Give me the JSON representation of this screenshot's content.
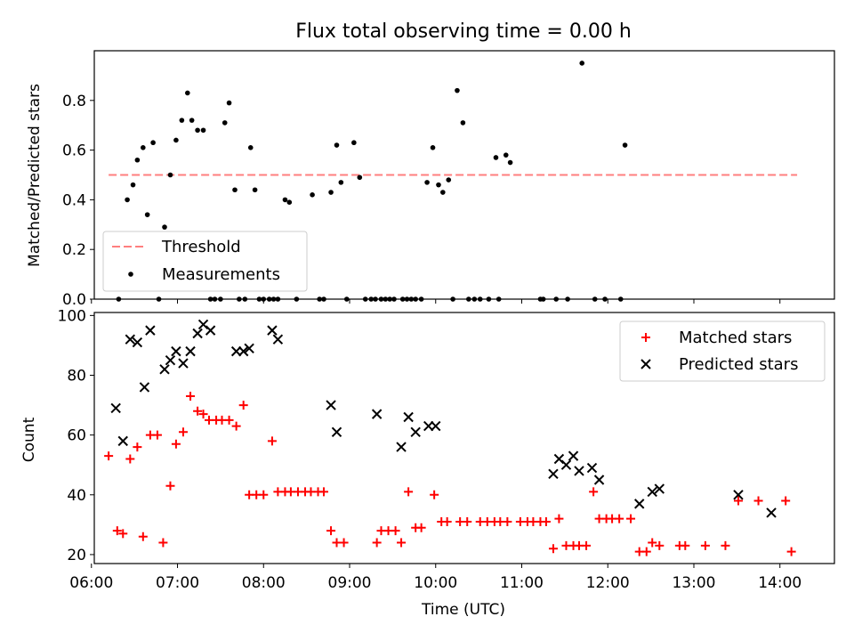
{
  "chart_data": [
    {
      "type": "scatter",
      "title": "Flux total observing time = 0.00 h",
      "ylabel": "Matched/Predicted stars",
      "xlabel": "",
      "xlim": [
        "06:02",
        "14:38"
      ],
      "ylim": [
        0,
        1.0
      ],
      "yticks": [
        "0.0",
        "0.2",
        "0.4",
        "0.6",
        "0.8"
      ],
      "grid": false,
      "legend_position": "lower-left",
      "threshold": {
        "name": "Threshold",
        "color": "#ff7f7f",
        "style": "dashed",
        "y": 0.5,
        "x_range": [
          "06:12",
          "14:12"
        ]
      },
      "series": [
        {
          "name": "Measurements",
          "color": "#000000",
          "marker": "dot",
          "points": [
            [
              "06:19",
              0.0
            ],
            [
              "06:25",
              0.4
            ],
            [
              "06:29",
              0.46
            ],
            [
              "06:32",
              0.56
            ],
            [
              "06:36",
              0.61
            ],
            [
              "06:39",
              0.34
            ],
            [
              "06:43",
              0.63
            ],
            [
              "06:47",
              0.0
            ],
            [
              "06:51",
              0.29
            ],
            [
              "06:55",
              0.5
            ],
            [
              "06:59",
              0.64
            ],
            [
              "07:03",
              0.72
            ],
            [
              "07:07",
              0.83
            ],
            [
              "07:10",
              0.72
            ],
            [
              "07:14",
              0.68
            ],
            [
              "07:18",
              0.68
            ],
            [
              "07:23",
              0.0
            ],
            [
              "07:26",
              0.0
            ],
            [
              "07:30",
              0.0
            ],
            [
              "07:33",
              0.71
            ],
            [
              "07:36",
              0.79
            ],
            [
              "07:40",
              0.44
            ],
            [
              "07:43",
              0.0
            ],
            [
              "07:47",
              0.0
            ],
            [
              "07:51",
              0.61
            ],
            [
              "07:54",
              0.44
            ],
            [
              "07:57",
              0.0
            ],
            [
              "08:00",
              0.0
            ],
            [
              "08:04",
              0.0
            ],
            [
              "08:07",
              0.0
            ],
            [
              "08:10",
              0.0
            ],
            [
              "08:15",
              0.4
            ],
            [
              "08:18",
              0.39
            ],
            [
              "08:23",
              0.0
            ],
            [
              "08:34",
              0.42
            ],
            [
              "08:39",
              0.0
            ],
            [
              "08:42",
              0.0
            ],
            [
              "08:47",
              0.43
            ],
            [
              "08:51",
              0.62
            ],
            [
              "08:54",
              0.47
            ],
            [
              "08:58",
              0.0
            ],
            [
              "09:03",
              0.63
            ],
            [
              "09:07",
              0.49
            ],
            [
              "09:11",
              0.0
            ],
            [
              "09:15",
              0.0
            ],
            [
              "09:18",
              0.0
            ],
            [
              "09:22",
              0.0
            ],
            [
              "09:25",
              0.0
            ],
            [
              "09:28",
              0.0
            ],
            [
              "09:31",
              0.0
            ],
            [
              "09:37",
              0.0
            ],
            [
              "09:40",
              0.0
            ],
            [
              "09:43",
              0.0
            ],
            [
              "09:46",
              0.0
            ],
            [
              "09:50",
              0.0
            ],
            [
              "09:54",
              0.47
            ],
            [
              "09:58",
              0.61
            ],
            [
              "10:02",
              0.46
            ],
            [
              "10:05",
              0.43
            ],
            [
              "10:09",
              0.48
            ],
            [
              "10:12",
              0.0
            ],
            [
              "10:15",
              0.84
            ],
            [
              "10:19",
              0.71
            ],
            [
              "10:23",
              0.0
            ],
            [
              "10:27",
              0.0
            ],
            [
              "10:31",
              0.0
            ],
            [
              "10:37",
              0.0
            ],
            [
              "10:42",
              0.57
            ],
            [
              "10:44",
              0.0
            ],
            [
              "10:49",
              0.58
            ],
            [
              "10:52",
              0.55
            ],
            [
              "11:13",
              0.0
            ],
            [
              "11:15",
              0.0
            ],
            [
              "11:24",
              0.0
            ],
            [
              "11:32",
              0.0
            ],
            [
              "11:42",
              0.95
            ],
            [
              "11:51",
              0.0
            ],
            [
              "11:58",
              0.0
            ],
            [
              "12:09",
              0.0
            ],
            [
              "12:12",
              0.62
            ]
          ]
        }
      ]
    },
    {
      "type": "scatter",
      "title": "",
      "ylabel": "Count",
      "xlabel": "Time (UTC)",
      "xlim": [
        "06:02",
        "14:38"
      ],
      "ylim": [
        17,
        101
      ],
      "yticks": [
        "20",
        "40",
        "60",
        "80",
        "100"
      ],
      "xticks": [
        "06:00",
        "07:00",
        "08:00",
        "09:00",
        "10:00",
        "11:00",
        "12:00",
        "13:00",
        "14:00"
      ],
      "grid": false,
      "legend_position": "upper-right",
      "series": [
        {
          "name": "Matched stars",
          "color": "#ff0000",
          "marker": "plus",
          "points": [
            [
              "06:12",
              53
            ],
            [
              "06:18",
              28
            ],
            [
              "06:22",
              27
            ],
            [
              "06:27",
              52
            ],
            [
              "06:32",
              56
            ],
            [
              "06:36",
              26
            ],
            [
              "06:41",
              60
            ],
            [
              "06:46",
              60
            ],
            [
              "06:50",
              24
            ],
            [
              "06:55",
              43
            ],
            [
              "06:59",
              57
            ],
            [
              "07:04",
              61
            ],
            [
              "07:09",
              73
            ],
            [
              "07:14",
              68
            ],
            [
              "07:18",
              67
            ],
            [
              "07:22",
              65
            ],
            [
              "07:27",
              65
            ],
            [
              "07:31",
              65
            ],
            [
              "07:36",
              65
            ],
            [
              "07:41",
              63
            ],
            [
              "07:46",
              70
            ],
            [
              "07:50",
              40
            ],
            [
              "07:55",
              40
            ],
            [
              "08:00",
              40
            ],
            [
              "08:06",
              58
            ],
            [
              "08:10",
              41
            ],
            [
              "08:15",
              41
            ],
            [
              "08:19",
              41
            ],
            [
              "08:24",
              41
            ],
            [
              "08:29",
              41
            ],
            [
              "08:33",
              41
            ],
            [
              "08:38",
              41
            ],
            [
              "08:42",
              41
            ],
            [
              "08:47",
              28
            ],
            [
              "08:51",
              24
            ],
            [
              "08:56",
              24
            ],
            [
              "09:19",
              24
            ],
            [
              "09:22",
              28
            ],
            [
              "09:27",
              28
            ],
            [
              "09:32",
              28
            ],
            [
              "09:36",
              24
            ],
            [
              "09:41",
              41
            ],
            [
              "09:46",
              29
            ],
            [
              "09:50",
              29
            ],
            [
              "09:59",
              40
            ],
            [
              "10:04",
              31
            ],
            [
              "10:08",
              31
            ],
            [
              "10:17",
              31
            ],
            [
              "10:22",
              31
            ],
            [
              "10:31",
              31
            ],
            [
              "10:36",
              31
            ],
            [
              "10:41",
              31
            ],
            [
              "10:45",
              31
            ],
            [
              "10:50",
              31
            ],
            [
              "10:59",
              31
            ],
            [
              "11:04",
              31
            ],
            [
              "11:08",
              31
            ],
            [
              "11:13",
              31
            ],
            [
              "11:17",
              31
            ],
            [
              "11:22",
              22
            ],
            [
              "11:26",
              32
            ],
            [
              "11:31",
              23
            ],
            [
              "11:36",
              23
            ],
            [
              "11:40",
              23
            ],
            [
              "11:45",
              23
            ],
            [
              "11:50",
              41
            ],
            [
              "11:54",
              32
            ],
            [
              "11:59",
              32
            ],
            [
              "12:03",
              32
            ],
            [
              "12:08",
              32
            ],
            [
              "12:16",
              32
            ],
            [
              "12:22",
              21
            ],
            [
              "12:27",
              21
            ],
            [
              "12:31",
              24
            ],
            [
              "12:36",
              23
            ],
            [
              "12:50",
              23
            ],
            [
              "12:54",
              23
            ],
            [
              "13:08",
              23
            ],
            [
              "13:22",
              23
            ],
            [
              "13:31",
              38
            ],
            [
              "13:45",
              38
            ],
            [
              "14:04",
              38
            ],
            [
              "14:08",
              21
            ]
          ]
        },
        {
          "name": "Predicted stars",
          "color": "#000000",
          "marker": "x",
          "points": [
            [
              "06:17",
              69
            ],
            [
              "06:22",
              58
            ],
            [
              "06:27",
              92
            ],
            [
              "06:32",
              91
            ],
            [
              "06:37",
              76
            ],
            [
              "06:41",
              95
            ],
            [
              "06:51",
              82
            ],
            [
              "06:55",
              85
            ],
            [
              "06:59",
              88
            ],
            [
              "07:04",
              84
            ],
            [
              "07:09",
              88
            ],
            [
              "07:14",
              94
            ],
            [
              "07:18",
              97
            ],
            [
              "07:23",
              95
            ],
            [
              "07:41",
              88
            ],
            [
              "07:46",
              88
            ],
            [
              "07:50",
              89
            ],
            [
              "08:06",
              95
            ],
            [
              "08:10",
              92
            ],
            [
              "08:47",
              70
            ],
            [
              "08:51",
              61
            ],
            [
              "09:19",
              67
            ],
            [
              "09:36",
              56
            ],
            [
              "09:41",
              66
            ],
            [
              "09:46",
              61
            ],
            [
              "09:55",
              63
            ],
            [
              "10:00",
              63
            ],
            [
              "11:22",
              47
            ],
            [
              "11:26",
              52
            ],
            [
              "11:31",
              50
            ],
            [
              "11:36",
              53
            ],
            [
              "11:40",
              48
            ],
            [
              "11:49",
              49
            ],
            [
              "11:54",
              45
            ],
            [
              "12:22",
              37
            ],
            [
              "12:31",
              41
            ],
            [
              "12:36",
              42
            ],
            [
              "13:31",
              40
            ],
            [
              "13:54",
              34
            ]
          ]
        }
      ]
    }
  ]
}
